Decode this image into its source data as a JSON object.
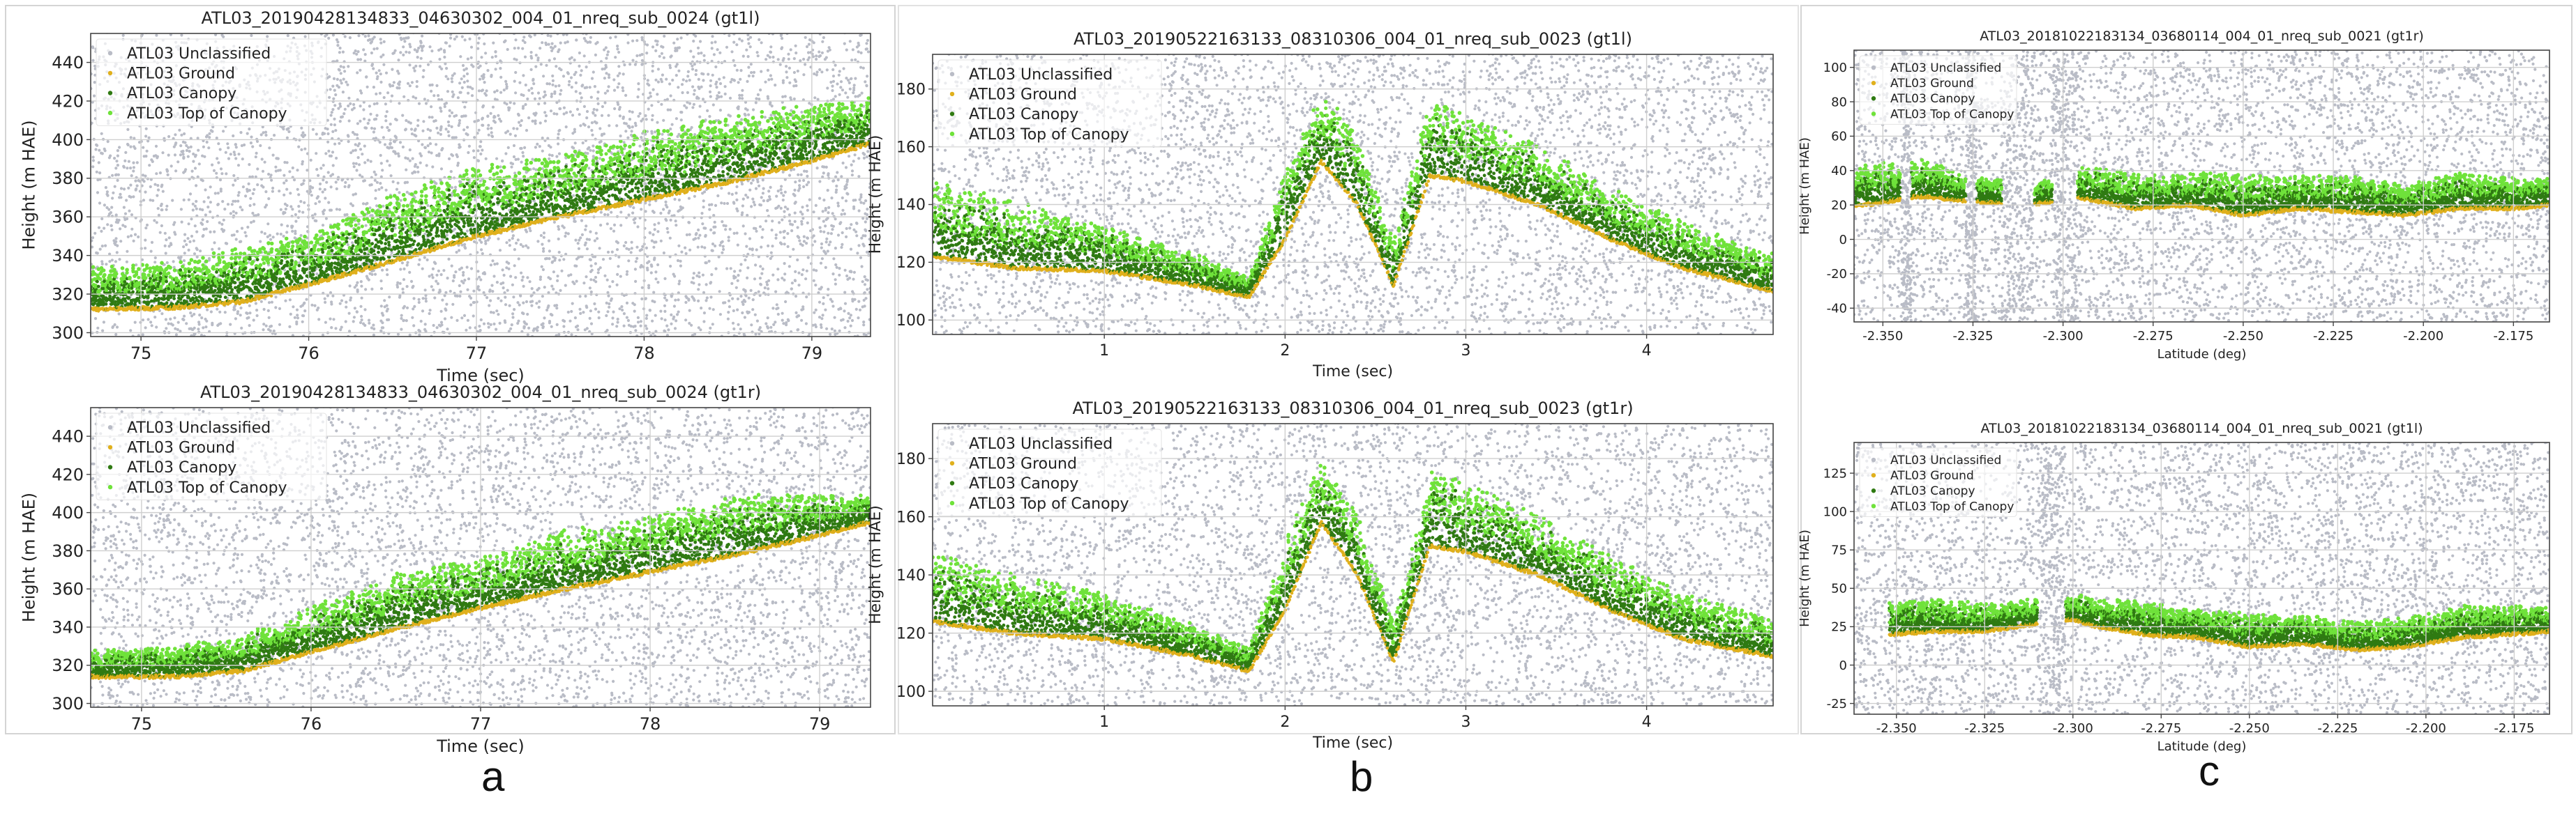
{
  "chart_data": [
    {
      "id": "a-top",
      "type": "scatter",
      "title": "ATL03_20190428134833_04630302_004_01_nreq_sub_0024 (gt1l)",
      "xlabel": "Time (sec)",
      "ylabel": "Height (m HAE)",
      "xlim": [
        74.7,
        79.35
      ],
      "ylim": [
        298,
        455
      ],
      "xticks": [
        75,
        76,
        77,
        78,
        79
      ],
      "yticks": [
        300,
        320,
        340,
        360,
        380,
        400,
        420,
        440
      ],
      "legend": [
        "ATL03 Unclassified",
        "ATL03 Ground",
        "ATL03 Canopy",
        "ATL03 Top of Canopy"
      ],
      "ground_profile": {
        "x": [
          74.7,
          75.2,
          75.6,
          76.0,
          76.5,
          77.0,
          77.5,
          78.0,
          78.5,
          79.0,
          79.35
        ],
        "y": [
          312,
          313,
          316,
          325,
          337,
          350,
          360,
          369,
          378,
          389,
          398
        ]
      },
      "canopy_height": [
        18,
        18,
        22,
        20,
        26,
        28,
        24,
        27,
        26,
        22,
        18
      ]
    },
    {
      "id": "a-bottom",
      "type": "scatter",
      "title": "ATL03_20190428134833_04630302_004_01_nreq_sub_0024 (gt1r)",
      "xlabel": "Time (sec)",
      "ylabel": "Height (m HAE)",
      "xlim": [
        74.7,
        79.3
      ],
      "ylim": [
        298,
        455
      ],
      "xticks": [
        75,
        76,
        77,
        78,
        79
      ],
      "yticks": [
        300,
        320,
        340,
        360,
        380,
        400,
        420,
        440
      ],
      "legend": [
        "ATL03 Unclassified",
        "ATL03 Ground",
        "ATL03 Canopy",
        "ATL03 Top of Canopy"
      ],
      "ground_profile": {
        "x": [
          74.7,
          75.2,
          75.6,
          76.0,
          76.5,
          77.0,
          77.5,
          78.0,
          78.5,
          79.0,
          79.3
        ],
        "y": [
          314,
          314,
          317,
          327,
          339,
          350,
          360,
          369,
          378,
          388,
          395
        ]
      },
      "canopy_height": [
        10,
        12,
        14,
        18,
        22,
        20,
        24,
        22,
        24,
        16,
        10
      ]
    },
    {
      "id": "b-top",
      "type": "scatter",
      "title": "ATL03_20190522163133_08310306_004_01_nreq_sub_0023 (gt1l)",
      "xlabel": "Time (sec)",
      "ylabel": "Height (m HAE)",
      "xlim": [
        0.05,
        4.7
      ],
      "ylim": [
        95,
        192
      ],
      "xticks": [
        1,
        2,
        3,
        4
      ],
      "yticks": [
        100,
        120,
        140,
        160,
        180
      ],
      "legend": [
        "ATL03 Unclassified",
        "ATL03 Ground",
        "ATL03 Canopy",
        "ATL03 Top of Canopy"
      ],
      "ground_profile": {
        "x": [
          0.05,
          0.5,
          1.0,
          1.5,
          1.8,
          2.0,
          2.2,
          2.4,
          2.6,
          2.8,
          3.0,
          3.4,
          3.8,
          4.2,
          4.7
        ],
        "y": [
          122,
          118,
          117,
          112,
          108,
          128,
          155,
          140,
          112,
          150,
          148,
          140,
          128,
          118,
          110
        ]
      },
      "canopy_height": [
        20,
        18,
        12,
        8,
        6,
        18,
        20,
        18,
        12,
        20,
        18,
        16,
        14,
        12,
        10
      ]
    },
    {
      "id": "b-bottom",
      "type": "scatter",
      "title": "ATL03_20190522163133_08310306_004_01_nreq_sub_0023 (gt1r)",
      "xlabel": "Time (sec)",
      "ylabel": "Height (m HAE)",
      "xlim": [
        0.05,
        4.7
      ],
      "ylim": [
        95,
        192
      ],
      "xticks": [
        1,
        2,
        3,
        4
      ],
      "yticks": [
        100,
        120,
        140,
        160,
        180
      ],
      "legend": [
        "ATL03 Unclassified",
        "ATL03 Ground",
        "ATL03 Canopy",
        "ATL03 Top of Canopy"
      ],
      "ground_profile": {
        "x": [
          0.05,
          0.5,
          1.0,
          1.5,
          1.8,
          2.0,
          2.2,
          2.4,
          2.6,
          2.8,
          3.0,
          3.4,
          3.8,
          4.2,
          4.7
        ],
        "y": [
          124,
          120,
          118,
          112,
          107,
          128,
          158,
          140,
          110,
          150,
          148,
          140,
          128,
          118,
          112
        ]
      },
      "canopy_height": [
        18,
        16,
        12,
        8,
        6,
        18,
        16,
        16,
        10,
        20,
        18,
        16,
        14,
        12,
        10
      ]
    },
    {
      "id": "c-top",
      "type": "scatter",
      "title": "ATL03_20181022183134_03680114_004_01_nreq_sub_0021 (gt1r)",
      "xlabel": "Latitude (deg)",
      "ylabel": "Height (m HAE)",
      "xlim": [
        -2.358,
        -2.165
      ],
      "ylim": [
        -48,
        110
      ],
      "xticks": [
        -2.35,
        -2.325,
        -2.3,
        -2.275,
        -2.25,
        -2.225,
        -2.2,
        -2.175
      ],
      "xticklabels": [
        "-2.350",
        "-2.325",
        "-2.300",
        "-2.275",
        "-2.250",
        "-2.225",
        "-2.200",
        "-2.175"
      ],
      "yticks": [
        -40,
        -20,
        0,
        20,
        40,
        60,
        80,
        100
      ],
      "legend": [
        "ATL03 Unclassified",
        "ATL03 Ground",
        "ATL03 Canopy",
        "ATL03 Top of Canopy"
      ],
      "ground_profile": {
        "x": [
          -2.355,
          -2.34,
          -2.325,
          -2.31,
          -2.295,
          -2.28,
          -2.265,
          -2.25,
          -2.235,
          -2.22,
          -2.205,
          -2.19,
          -2.175,
          -2.165
        ],
        "y": [
          20,
          25,
          22,
          20,
          24,
          18,
          20,
          14,
          18,
          16,
          14,
          18,
          18,
          20
        ]
      },
      "canopy_height": [
        18,
        16,
        12,
        8,
        14,
        16,
        14,
        18,
        14,
        16,
        14,
        16,
        14,
        12
      ],
      "gaps": [
        [
          -2.345,
          -2.342
        ],
        [
          -2.327,
          -2.324
        ],
        [
          -2.317,
          -2.308
        ],
        [
          -2.303,
          -2.296
        ]
      ]
    },
    {
      "id": "c-bottom",
      "type": "scatter",
      "title": "ATL03_20181022183134_03680114_004_01_nreq_sub_0021 (gt1l)",
      "xlabel": "Latitude (deg)",
      "ylabel": "Height (m HAE)",
      "xlim": [
        -2.362,
        -2.165
      ],
      "ylim": [
        -32,
        145
      ],
      "xticks": [
        -2.35,
        -2.325,
        -2.3,
        -2.275,
        -2.25,
        -2.225,
        -2.2,
        -2.175
      ],
      "xticklabels": [
        "-2.350",
        "-2.325",
        "-2.300",
        "-2.275",
        "-2.250",
        "-2.225",
        "-2.200",
        "-2.175"
      ],
      "yticks": [
        -25,
        0,
        25,
        50,
        75,
        100,
        125
      ],
      "legend": [
        "ATL03 Unclassified",
        "ATL03 Ground",
        "ATL03 Canopy",
        "ATL03 Top of Canopy"
      ],
      "ground_profile": {
        "x": [
          -2.352,
          -2.34,
          -2.325,
          -2.3,
          -2.295,
          -2.28,
          -2.265,
          -2.25,
          -2.235,
          -2.22,
          -2.205,
          -2.19,
          -2.175,
          -2.165
        ],
        "y": [
          20,
          22,
          22,
          30,
          26,
          20,
          18,
          12,
          14,
          10,
          12,
          18,
          20,
          22
        ],
        "start": -2.352
      },
      "canopy_height": [
        16,
        16,
        14,
        12,
        14,
        16,
        14,
        16,
        14,
        14,
        14,
        16,
        14,
        12
      ],
      "gaps": [
        [
          -2.31,
          -2.302
        ]
      ]
    }
  ],
  "panel_labels": [
    "a",
    "b",
    "c"
  ],
  "colors": {
    "unclassified": "#b9bcc6",
    "ground": "#e0b01c",
    "canopy": "#2f7a12",
    "top_of_canopy": "#6fe23a",
    "grid": "#cfcfcf",
    "axis": "#444444"
  }
}
